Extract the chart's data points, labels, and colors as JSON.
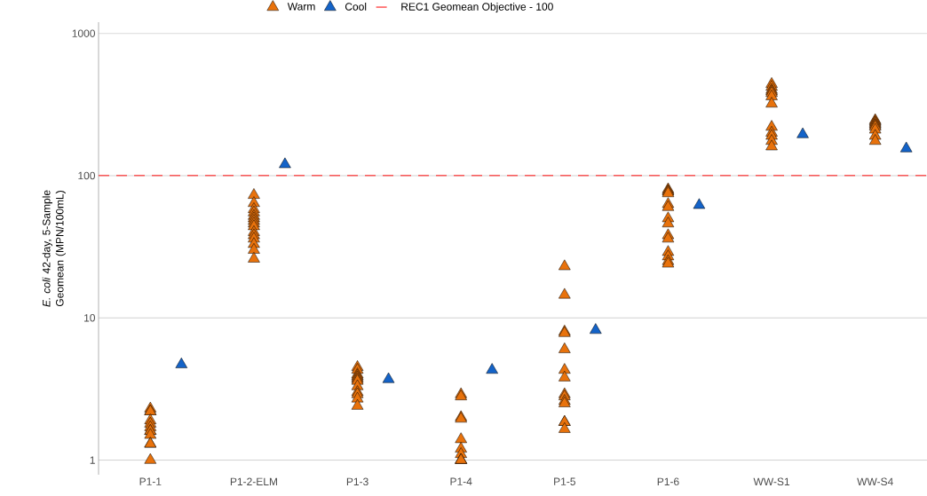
{
  "chart_data": {
    "type": "scatter",
    "ylabel": "*E. coli* 42-day, 5-Sample Geomean (MPN/100mL)",
    "categories": [
      "P1-1",
      "P1-2-ELM",
      "P1-3",
      "P1-4",
      "P1-5",
      "P1-6",
      "WW-S1",
      "WW-S4"
    ],
    "log": true,
    "ylim": [
      0.79,
      1200
    ],
    "yticks": [
      1,
      10,
      100,
      1000
    ],
    "grid": "y",
    "legend": "top",
    "marker": "triangle",
    "series": [
      {
        "name": "Warm",
        "color": "#e8720c",
        "x": [
          "P1-1",
          "P1-1",
          "P1-1",
          "P1-1",
          "P1-1",
          "P1-1",
          "P1-1",
          "P1-1",
          "P1-1",
          "P1-1",
          "P1-1",
          "P1-1",
          "P1-2-ELM",
          "P1-2-ELM",
          "P1-2-ELM",
          "P1-2-ELM",
          "P1-2-ELM",
          "P1-2-ELM",
          "P1-2-ELM",
          "P1-2-ELM",
          "P1-2-ELM",
          "P1-2-ELM",
          "P1-2-ELM",
          "P1-2-ELM",
          "P1-2-ELM",
          "P1-2-ELM",
          "P1-2-ELM",
          "P1-3",
          "P1-3",
          "P1-3",
          "P1-3",
          "P1-3",
          "P1-3",
          "P1-3",
          "P1-3",
          "P1-3",
          "P1-3",
          "P1-3",
          "P1-3",
          "P1-4",
          "P1-4",
          "P1-4",
          "P1-4",
          "P1-4",
          "P1-4",
          "P1-4",
          "P1-4",
          "P1-4",
          "P1-4",
          "P1-5",
          "P1-5",
          "P1-5",
          "P1-5",
          "P1-5",
          "P1-5",
          "P1-5",
          "P1-5",
          "P1-5",
          "P1-5",
          "P1-5",
          "P1-5",
          "P1-5",
          "P1-5",
          "P1-6",
          "P1-6",
          "P1-6",
          "P1-6",
          "P1-6",
          "P1-6",
          "P1-6",
          "P1-6",
          "P1-6",
          "P1-6",
          "P1-6",
          "P1-6",
          "P1-6",
          "P1-6",
          "WW-S1",
          "WW-S1",
          "WW-S1",
          "WW-S1",
          "WW-S1",
          "WW-S1",
          "WW-S1",
          "WW-S1",
          "WW-S1",
          "WW-S1",
          "WW-S1",
          "WW-S1",
          "WW-S4",
          "WW-S4",
          "WW-S4",
          "WW-S4",
          "WW-S4",
          "WW-S4",
          "WW-S4",
          "WW-S4",
          "WW-S4"
        ],
        "values": [
          2.3,
          2.2,
          2.2,
          1.9,
          1.8,
          1.7,
          1.6,
          1.6,
          1.5,
          1.3,
          1.3,
          1.0,
          73,
          64,
          58,
          55,
          52,
          50,
          48,
          46,
          44,
          40,
          38,
          36,
          33,
          30,
          26,
          4.5,
          4.3,
          4.0,
          3.9,
          3.8,
          3.7,
          3.6,
          3.3,
          3.0,
          2.9,
          2.7,
          2.4,
          2.9,
          2.8,
          2.0,
          1.95,
          1.4,
          1.2,
          1.1,
          1.0,
          1.0,
          1.0,
          23,
          14.5,
          8,
          7.8,
          6,
          4.3,
          3.8,
          2.9,
          2.8,
          2.6,
          2.5,
          1.85,
          1.85,
          1.65,
          80,
          78,
          77,
          75,
          63,
          60,
          50,
          46,
          38,
          36,
          29,
          27,
          25,
          24,
          440,
          420,
          400,
          390,
          380,
          360,
          320,
          220,
          200,
          190,
          175,
          160,
          245,
          240,
          235,
          230,
          225,
          220,
          210,
          190,
          175
        ]
      },
      {
        "name": "Cool",
        "color": "#1463c8",
        "x": [
          "P1-1",
          "P1-2-ELM",
          "P1-3",
          "P1-4",
          "P1-5",
          "P1-6",
          "WW-S1",
          "WW-S4"
        ],
        "values": [
          4.7,
          120,
          3.7,
          4.3,
          8.2,
          62,
          195,
          155
        ]
      }
    ],
    "ref_lines": [
      {
        "axis": "y",
        "value": 100,
        "label": "REC1 Geomean Objective - 100",
        "color": "#ff2a2a",
        "line_style": "dashed"
      }
    ]
  }
}
